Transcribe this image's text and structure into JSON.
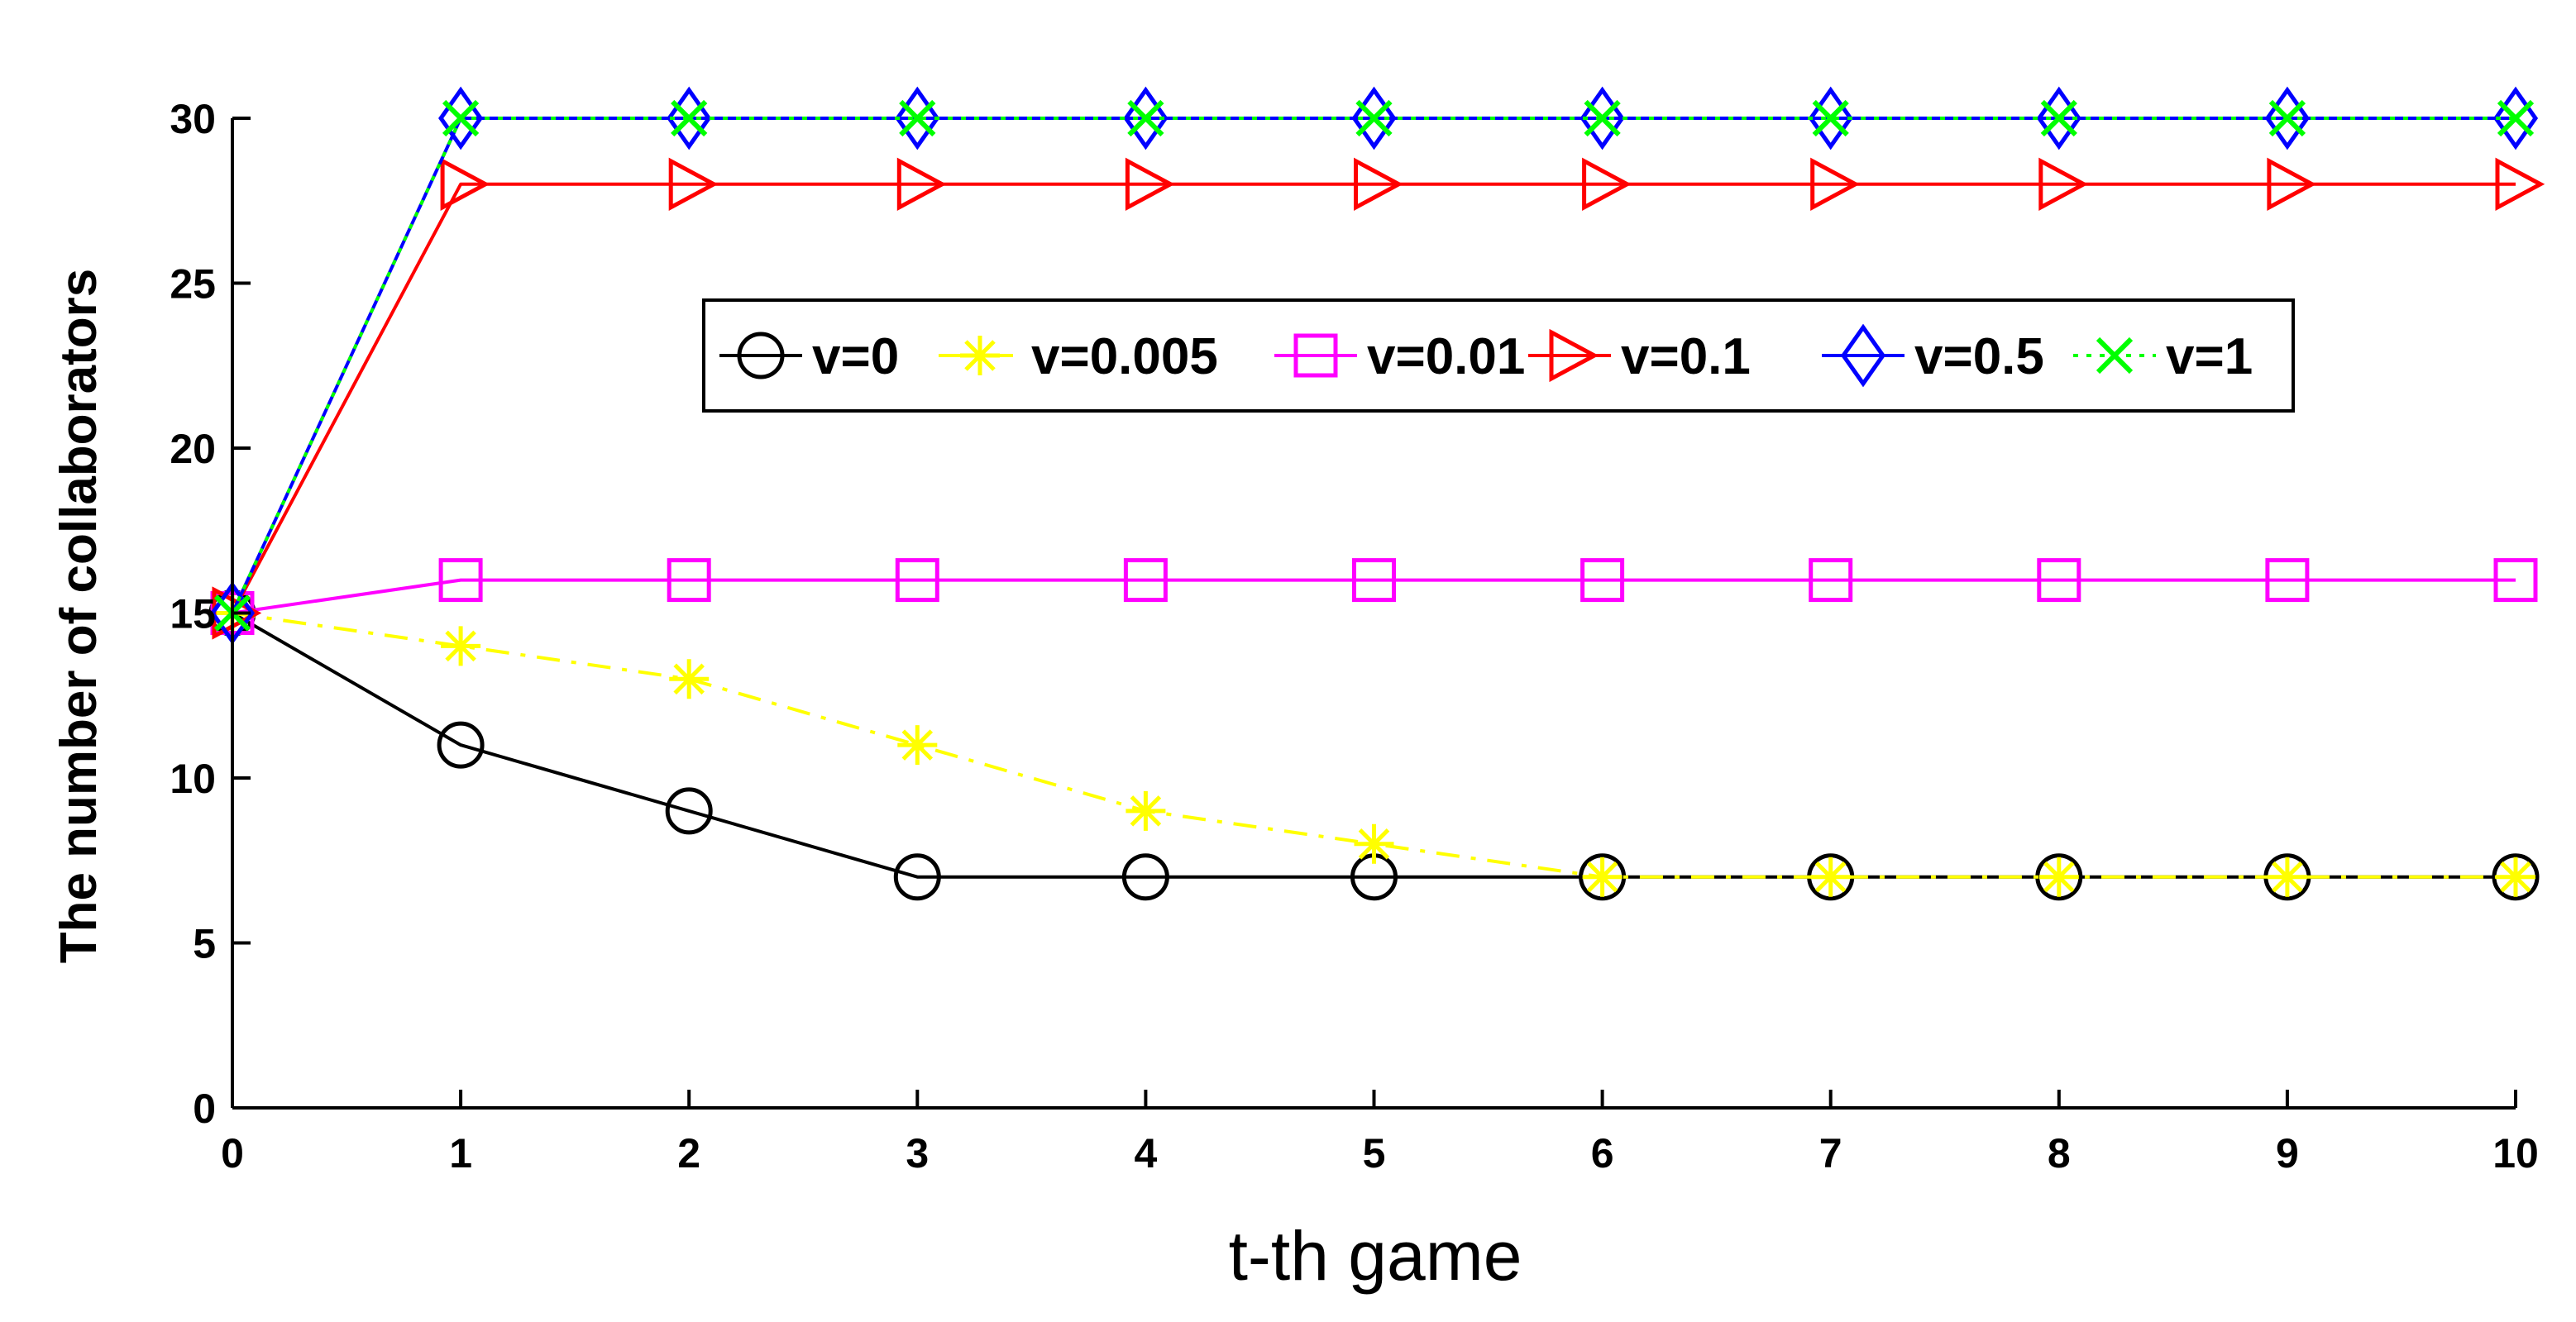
{
  "chart_data": {
    "type": "line",
    "title": "",
    "xlabel": "t-th game",
    "ylabel": "The number of collaborators",
    "x": [
      0,
      1,
      2,
      3,
      4,
      5,
      6,
      7,
      8,
      9,
      10
    ],
    "xlim": [
      0,
      10
    ],
    "ylim": [
      0,
      30
    ],
    "xticks": [
      "0",
      "1",
      "2",
      "3",
      "4",
      "5",
      "6",
      "7",
      "8",
      "9",
      "10"
    ],
    "yticks": [
      "0",
      "5",
      "10",
      "15",
      "20",
      "25",
      "30"
    ],
    "grid": false,
    "legend_position": "top-center",
    "series": [
      {
        "name": "v=0",
        "color": "#000000",
        "marker": "circle",
        "dash": "solid",
        "values": [
          15,
          11,
          9,
          7,
          7,
          7,
          7,
          7,
          7,
          7,
          7
        ]
      },
      {
        "name": "v=0.005",
        "color": "#ffff00",
        "marker": "star",
        "dash": "dashdot",
        "values": [
          15,
          14,
          13,
          11,
          9,
          8,
          7,
          7,
          7,
          7,
          7
        ]
      },
      {
        "name": "v=0.01",
        "color": "#ff00ff",
        "marker": "square",
        "dash": "solid",
        "values": [
          15,
          16,
          16,
          16,
          16,
          16,
          16,
          16,
          16,
          16,
          16
        ]
      },
      {
        "name": "v=0.1",
        "color": "#ff0000",
        "marker": "triangle-right",
        "dash": "solid",
        "values": [
          15,
          28,
          28,
          28,
          28,
          28,
          28,
          28,
          28,
          28,
          28
        ]
      },
      {
        "name": "v=0.5",
        "color": "#0000ff",
        "marker": "diamond",
        "dash": "solid",
        "values": [
          15,
          30,
          30,
          30,
          30,
          30,
          30,
          30,
          30,
          30,
          30
        ]
      },
      {
        "name": "v=1",
        "color": "#00ff00",
        "marker": "x",
        "dash": "dotted",
        "values": [
          15,
          30,
          30,
          30,
          30,
          30,
          30,
          30,
          30,
          30,
          30
        ]
      }
    ]
  }
}
